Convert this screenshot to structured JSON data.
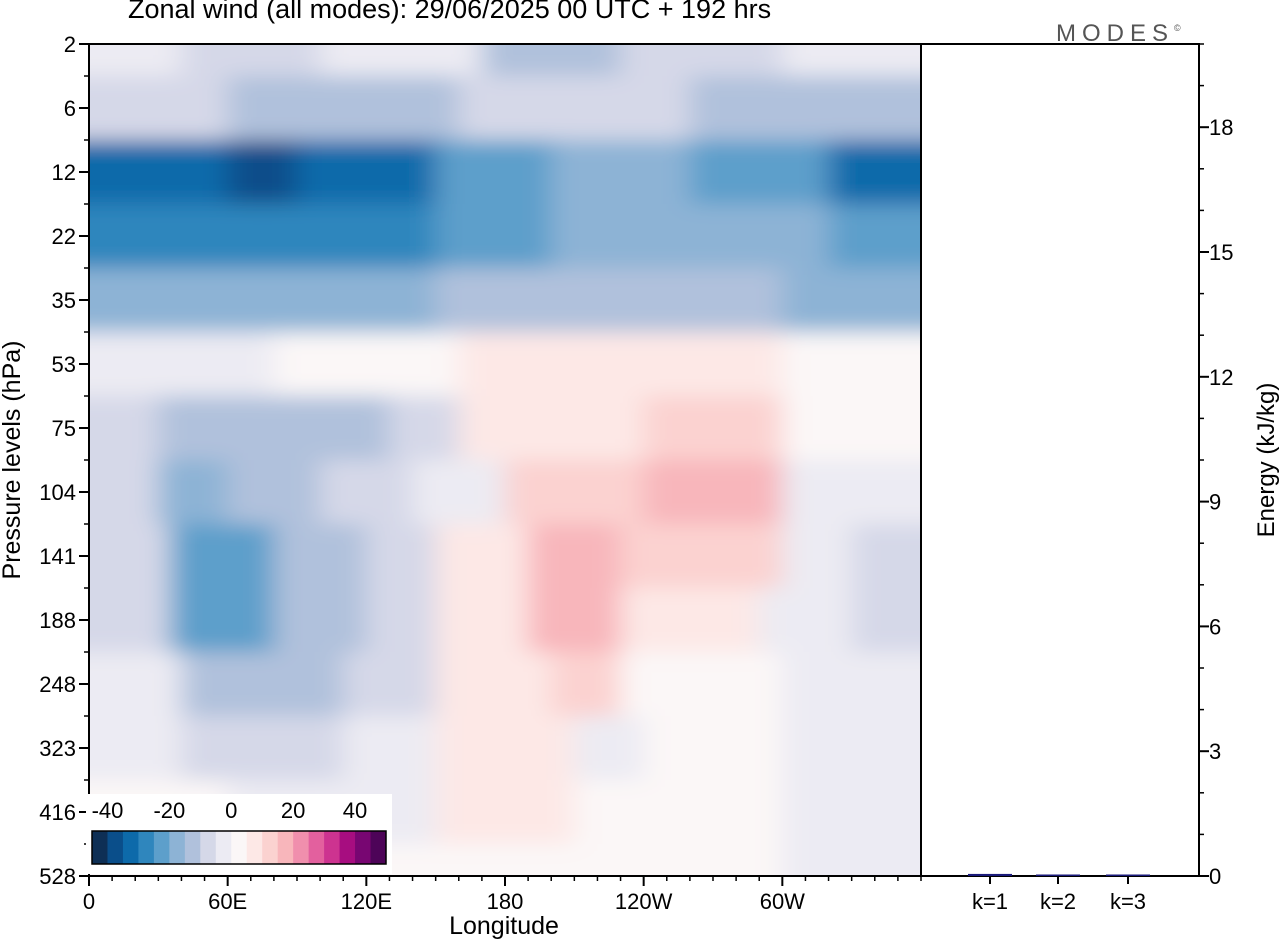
{
  "page": {
    "title": "Zonal wind (all modes):  29/06/2025  00 UTC  + 192 hrs",
    "logo": "MODES",
    "logo_mark": "©"
  },
  "chart_data": [
    {
      "type": "heatmap",
      "title": "Zonal wind (all modes):  29/06/2025  00 UTC  + 192 hrs",
      "xlabel": "Longitude",
      "ylabel": "Pressure levels (hPa)",
      "x_ticks": [
        "0",
        "60E",
        "120E",
        "180",
        "120W",
        "60W"
      ],
      "x_tick_degrees": [
        0,
        60,
        120,
        180,
        240,
        300
      ],
      "xlim": [
        0,
        360
      ],
      "y_ticks": [
        "2",
        "6",
        "12",
        "22",
        "35",
        "53",
        "75",
        "104",
        "141",
        "188",
        "248",
        "323",
        "416",
        "528"
      ],
      "colorbar": {
        "ticks": [
          "-40",
          "-20",
          "0",
          "20",
          "40"
        ],
        "levels": [
          -45,
          -40,
          -35,
          -30,
          -25,
          -20,
          -15,
          -10,
          -5,
          0,
          5,
          10,
          15,
          20,
          25,
          30,
          35,
          40,
          45
        ],
        "colors": [
          "#0e2f55",
          "#0a4e8a",
          "#0d6aaa",
          "#2f86bd",
          "#5d9fcb",
          "#8db3d5",
          "#b0c1dc",
          "#d5d8e8",
          "#ecebf3",
          "#fbf7f7",
          "#fde8e6",
          "#fbd2d0",
          "#f8b6bb",
          "#f08fad",
          "#e3609e",
          "#cd3390",
          "#a70d80",
          "#780672",
          "#4d0458"
        ]
      },
      "bands": [
        {
          "level": "2",
          "regions": [
            [
              0,
              40,
              -5
            ],
            [
              40,
              100,
              -10
            ],
            [
              100,
              170,
              -5
            ],
            [
              170,
              230,
              -15
            ],
            [
              230,
              300,
              -10
            ],
            [
              300,
              360,
              -5
            ]
          ]
        },
        {
          "level": "6",
          "regions": [
            [
              0,
              60,
              -10
            ],
            [
              60,
              160,
              -15
            ],
            [
              160,
              260,
              -10
            ],
            [
              260,
              360,
              -15
            ]
          ]
        },
        {
          "level": "12",
          "regions": [
            [
              0,
              60,
              -35
            ],
            [
              60,
              90,
              -40
            ],
            [
              90,
              150,
              -35
            ],
            [
              150,
              200,
              -25
            ],
            [
              200,
              260,
              -20
            ],
            [
              260,
              320,
              -25
            ],
            [
              320,
              360,
              -35
            ]
          ]
        },
        {
          "level": "22",
          "regions": [
            [
              0,
              150,
              -30
            ],
            [
              150,
              200,
              -25
            ],
            [
              200,
              320,
              -20
            ],
            [
              320,
              360,
              -25
            ]
          ]
        },
        {
          "level": "35",
          "regions": [
            [
              0,
              150,
              -20
            ],
            [
              150,
              300,
              -15
            ],
            [
              300,
              360,
              -20
            ]
          ]
        },
        {
          "level": "53",
          "regions": [
            [
              0,
              80,
              -5
            ],
            [
              80,
              160,
              0
            ],
            [
              160,
              300,
              5
            ],
            [
              300,
              360,
              0
            ]
          ]
        },
        {
          "level": "75",
          "regions": [
            [
              0,
              30,
              -10
            ],
            [
              30,
              130,
              -15
            ],
            [
              130,
              160,
              -10
            ],
            [
              160,
              240,
              5
            ],
            [
              240,
              300,
              10
            ],
            [
              300,
              360,
              0
            ]
          ]
        },
        {
          "level": "104",
          "regions": [
            [
              0,
              30,
              -10
            ],
            [
              30,
              60,
              -20
            ],
            [
              60,
              100,
              -15
            ],
            [
              100,
              140,
              -10
            ],
            [
              140,
              180,
              -5
            ],
            [
              180,
              240,
              10
            ],
            [
              240,
              300,
              15
            ],
            [
              300,
              360,
              -5
            ]
          ]
        },
        {
          "level": "141",
          "regions": [
            [
              0,
              35,
              -10
            ],
            [
              35,
              80,
              -25
            ],
            [
              80,
              120,
              -15
            ],
            [
              120,
              150,
              -10
            ],
            [
              150,
              190,
              5
            ],
            [
              190,
              230,
              15
            ],
            [
              230,
              300,
              10
            ],
            [
              300,
              330,
              -5
            ],
            [
              330,
              360,
              -10
            ]
          ]
        },
        {
          "level": "188",
          "regions": [
            [
              0,
              35,
              -10
            ],
            [
              35,
              80,
              -25
            ],
            [
              80,
              120,
              -15
            ],
            [
              120,
              150,
              -10
            ],
            [
              150,
              190,
              5
            ],
            [
              190,
              230,
              15
            ],
            [
              230,
              290,
              5
            ],
            [
              290,
              330,
              -5
            ],
            [
              330,
              360,
              -10
            ]
          ]
        },
        {
          "level": "248",
          "regions": [
            [
              0,
              40,
              -5
            ],
            [
              40,
              110,
              -15
            ],
            [
              110,
              150,
              -10
            ],
            [
              150,
              200,
              5
            ],
            [
              200,
              230,
              10
            ],
            [
              230,
              300,
              0
            ],
            [
              300,
              360,
              -5
            ]
          ]
        },
        {
          "level": "323",
          "regions": [
            [
              0,
              40,
              -5
            ],
            [
              40,
              110,
              -10
            ],
            [
              110,
              150,
              -5
            ],
            [
              150,
              210,
              5
            ],
            [
              210,
              240,
              -5
            ],
            [
              240,
              300,
              0
            ],
            [
              300,
              360,
              -5
            ]
          ]
        },
        {
          "level": "416",
          "regions": [
            [
              0,
              60,
              0
            ],
            [
              60,
              150,
              -5
            ],
            [
              150,
              210,
              5
            ],
            [
              210,
              300,
              0
            ],
            [
              300,
              360,
              -5
            ]
          ]
        },
        {
          "level": "528",
          "regions": [
            [
              0,
              150,
              0
            ],
            [
              150,
              300,
              0
            ],
            [
              300,
              360,
              -5
            ]
          ]
        }
      ]
    },
    {
      "type": "bar",
      "ylabel": "Energy (kJ/kg)",
      "ylim": [
        0,
        20
      ],
      "y_ticks": [
        0,
        3,
        6,
        9,
        12,
        15,
        18
      ],
      "categories": [
        "k=1",
        "k=2",
        "k=3"
      ],
      "values": [
        0.05,
        0.03,
        0.02
      ],
      "color": "#1a1a7a"
    }
  ]
}
